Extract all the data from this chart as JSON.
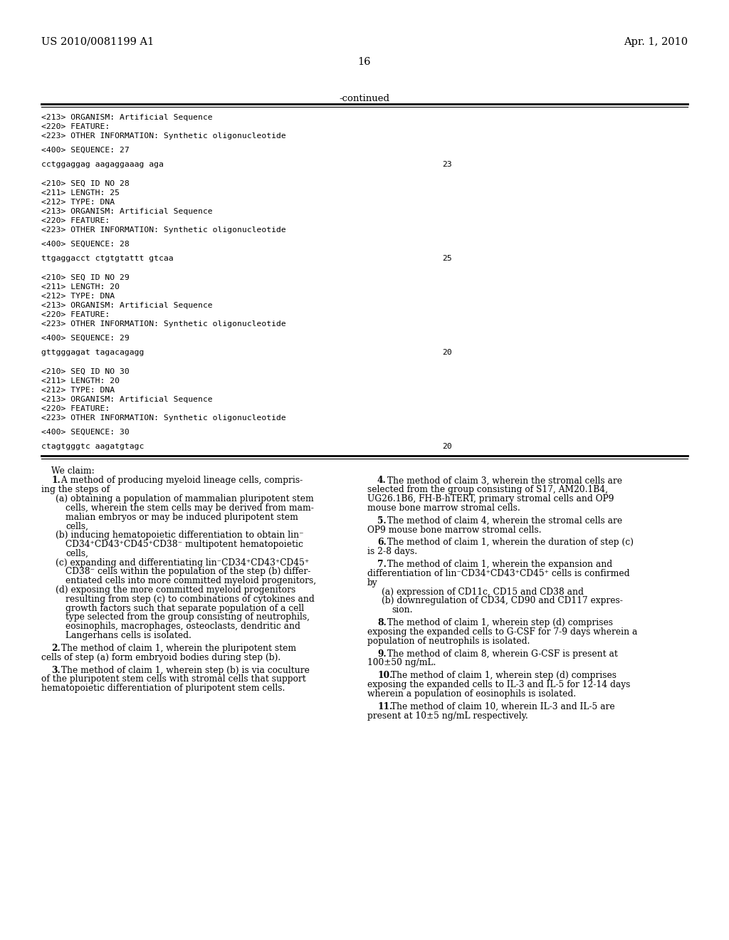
{
  "bg_color": "#ffffff",
  "header_left": "US 2010/0081199 A1",
  "header_right": "Apr. 1, 2010",
  "page_number": "16",
  "continued_label": "-continued",
  "seq_lines": [
    {
      "text": "<213> ORGANISM: Artificial Sequence",
      "num": null
    },
    {
      "text": "<220> FEATURE:",
      "num": null
    },
    {
      "text": "<223> OTHER INFORMATION: Synthetic oligonucleotide",
      "num": null
    },
    {
      "text": "",
      "num": null
    },
    {
      "text": "<400> SEQUENCE: 27",
      "num": null
    },
    {
      "text": "",
      "num": null
    },
    {
      "text": "cctggaggag aagaggaaag aga",
      "num": "23"
    },
    {
      "text": "",
      "num": null
    },
    {
      "text": "",
      "num": null
    },
    {
      "text": "<210> SEQ ID NO 28",
      "num": null
    },
    {
      "text": "<211> LENGTH: 25",
      "num": null
    },
    {
      "text": "<212> TYPE: DNA",
      "num": null
    },
    {
      "text": "<213> ORGANISM: Artificial Sequence",
      "num": null
    },
    {
      "text": "<220> FEATURE:",
      "num": null
    },
    {
      "text": "<223> OTHER INFORMATION: Synthetic oligonucleotide",
      "num": null
    },
    {
      "text": "",
      "num": null
    },
    {
      "text": "<400> SEQUENCE: 28",
      "num": null
    },
    {
      "text": "",
      "num": null
    },
    {
      "text": "ttgaggacct ctgtgtattt gtcaa",
      "num": "25"
    },
    {
      "text": "",
      "num": null
    },
    {
      "text": "",
      "num": null
    },
    {
      "text": "<210> SEQ ID NO 29",
      "num": null
    },
    {
      "text": "<211> LENGTH: 20",
      "num": null
    },
    {
      "text": "<212> TYPE: DNA",
      "num": null
    },
    {
      "text": "<213> ORGANISM: Artificial Sequence",
      "num": null
    },
    {
      "text": "<220> FEATURE:",
      "num": null
    },
    {
      "text": "<223> OTHER INFORMATION: Synthetic oligonucleotide",
      "num": null
    },
    {
      "text": "",
      "num": null
    },
    {
      "text": "<400> SEQUENCE: 29",
      "num": null
    },
    {
      "text": "",
      "num": null
    },
    {
      "text": "gttgggagat tagacagagg",
      "num": "20"
    },
    {
      "text": "",
      "num": null
    },
    {
      "text": "",
      "num": null
    },
    {
      "text": "<210> SEQ ID NO 30",
      "num": null
    },
    {
      "text": "<211> LENGTH: 20",
      "num": null
    },
    {
      "text": "<212> TYPE: DNA",
      "num": null
    },
    {
      "text": "<213> ORGANISM: Artificial Sequence",
      "num": null
    },
    {
      "text": "<220> FEATURE:",
      "num": null
    },
    {
      "text": "<223> OTHER INFORMATION: Synthetic oligonucleotide",
      "num": null
    },
    {
      "text": "",
      "num": null
    },
    {
      "text": "<400> SEQUENCE: 30",
      "num": null
    },
    {
      "text": "",
      "num": null
    },
    {
      "text": "ctagtgggtc aagatgtagc",
      "num": "20"
    }
  ],
  "claims_title": "We claim:",
  "col1_claims": [
    {
      "type": "claim_num",
      "bold": "1.",
      "rest": " A method of producing myeloid lineage cells, compris-"
    },
    {
      "type": "claim_body",
      "indent": 0,
      "text": "ing the steps of"
    },
    {
      "type": "claim_sub",
      "text": "(a) obtaining a population of mammalian pluripotent stem"
    },
    {
      "type": "claim_sub2",
      "text": "cells, wherein the stem cells may be derived from mam-"
    },
    {
      "type": "claim_sub2",
      "text": "malian embryos or may be induced pluripotent stem"
    },
    {
      "type": "claim_sub2",
      "text": "cells,"
    },
    {
      "type": "claim_sub",
      "text": "(b) inducing hematopoietic differentiation to obtain lin⁻"
    },
    {
      "type": "claim_sub2",
      "text": "CD34⁺CD43⁺CD45⁺CD38⁻ multipotent hematopoietic"
    },
    {
      "type": "claim_sub2",
      "text": "cells,"
    },
    {
      "type": "claim_sub",
      "text": "(c) expanding and differentiating lin⁻CD34⁺CD43⁺CD45⁺"
    },
    {
      "type": "claim_sub2",
      "text": "CD38⁻ cells within the population of the step (b) differ-"
    },
    {
      "type": "claim_sub2",
      "text": "entiated cells into more committed myeloid progenitors,"
    },
    {
      "type": "claim_sub",
      "text": "(d) exposing the more committed myeloid progenitors"
    },
    {
      "type": "claim_sub2",
      "text": "resulting from step (c) to combinations of cytokines and"
    },
    {
      "type": "claim_sub2",
      "text": "growth factors such that separate population of a cell"
    },
    {
      "type": "claim_sub2",
      "text": "type selected from the group consisting of neutrophils,"
    },
    {
      "type": "claim_sub2",
      "text": "eosinophils, macrophages, osteoclasts, dendritic and"
    },
    {
      "type": "claim_sub2",
      "text": "Langerhans cells is isolated."
    },
    {
      "type": "spacer"
    },
    {
      "type": "claim_num",
      "bold": "2.",
      "rest": " The method of claim ±1, wherein the pluripotent stem"
    },
    {
      "type": "claim_body",
      "indent": 0,
      "text": "cells of step (a) form embryoid bodies during step (b)."
    },
    {
      "type": "spacer"
    },
    {
      "type": "claim_num",
      "bold": "3.",
      "rest": " The method of claim ±1, wherein step (b) is via coculture"
    },
    {
      "type": "claim_body",
      "indent": 0,
      "text": "of the pluripotent stem cells with stromal cells that support"
    },
    {
      "type": "claim_body",
      "indent": 0,
      "text": "hematopoietic differentiation of pluripotent stem cells."
    }
  ],
  "col2_claims": [
    {
      "type": "claim_num",
      "bold": "4.",
      "rest": " The method of claim ±3, wherein the stromal cells are"
    },
    {
      "type": "claim_body",
      "indent": 0,
      "text": "selected from the group consisting of S17, AM20.1B4,"
    },
    {
      "type": "claim_body",
      "indent": 0,
      "text": "UG26.1B6, FH-B-hTERT, primary stromal cells and OP9"
    },
    {
      "type": "claim_body",
      "indent": 0,
      "text": "mouse bone marrow stromal cells."
    },
    {
      "type": "spacer"
    },
    {
      "type": "claim_num",
      "bold": "5.",
      "rest": " The method of claim ±4, wherein the stromal cells are"
    },
    {
      "type": "claim_body",
      "indent": 0,
      "text": "OP9 mouse bone marrow stromal cells."
    },
    {
      "type": "spacer"
    },
    {
      "type": "claim_num",
      "bold": "6.",
      "rest": " The method of claim ±1, wherein the duration of step (c)"
    },
    {
      "type": "claim_body",
      "indent": 0,
      "text": "is 2-8 days."
    },
    {
      "type": "spacer"
    },
    {
      "type": "claim_num",
      "bold": "7.",
      "rest": " The method of claim ±1, wherein the expansion and"
    },
    {
      "type": "claim_body",
      "indent": 0,
      "text": "differentiation of lin⁻CD34⁺CD43⁺CD45⁺ cells is confirmed"
    },
    {
      "type": "claim_body",
      "indent": 0,
      "text": "by"
    },
    {
      "type": "claim_sub",
      "text": "(a) expression of CD11c, CD15 and CD38 and"
    },
    {
      "type": "claim_sub",
      "text": "(b) downregulation of CD34, CD90 and CD117 expres-"
    },
    {
      "type": "claim_sub2",
      "text": "sion."
    },
    {
      "type": "spacer"
    },
    {
      "type": "claim_num",
      "bold": "8.",
      "rest": " The method of claim ±1, wherein step (d) comprises"
    },
    {
      "type": "claim_body",
      "indent": 0,
      "text": "exposing the expanded cells to G-CSF for 7-9 days wherein a"
    },
    {
      "type": "claim_body",
      "indent": 0,
      "text": "population of neutrophils is isolated."
    },
    {
      "type": "spacer"
    },
    {
      "type": "claim_num",
      "bold": "9.",
      "rest": " The method of claim ±8, wherein G-CSF is present at"
    },
    {
      "type": "claim_body",
      "indent": 0,
      "text": "100±50 ng/mL."
    },
    {
      "type": "spacer"
    },
    {
      "type": "claim_num",
      "bold": "10.",
      "rest": " The method of claim ±1, wherein step (d) comprises"
    },
    {
      "type": "claim_body",
      "indent": 0,
      "text": "exposing the expanded cells to IL-3 and IL-5 for 12-14 days"
    },
    {
      "type": "claim_body",
      "indent": 0,
      "text": "wherein a population of eosinophils is isolated."
    },
    {
      "type": "spacer"
    },
    {
      "type": "claim_num",
      "bold": "11.",
      "rest": " The method of claim ±10, wherein IL-3 and IL-5 are"
    },
    {
      "type": "claim_body",
      "indent": 0,
      "text": "present at 10±5 ng/mL respectively."
    }
  ]
}
